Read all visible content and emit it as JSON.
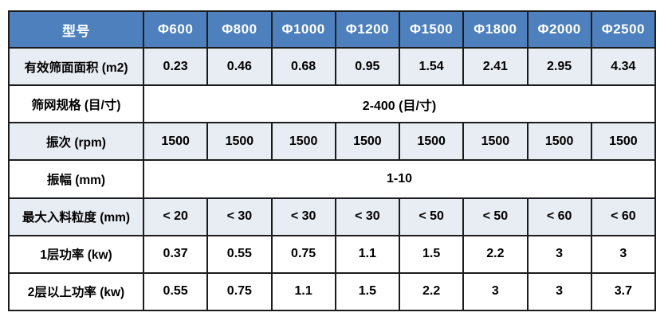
{
  "table": {
    "header": {
      "label": "型号",
      "columns": [
        "Φ600",
        "Φ800",
        "Φ1000",
        "Φ1200",
        "Φ1500",
        "Φ1800",
        "Φ2000",
        "Φ2500"
      ]
    },
    "rows": [
      {
        "label": "有效筛面面积 (m2)",
        "values": [
          "0.23",
          "0.46",
          "0.68",
          "0.95",
          "1.54",
          "2.41",
          "2.95",
          "4.34"
        ]
      },
      {
        "label": "筛网规格 (目/寸)",
        "merged": "2-400 (目/寸)"
      },
      {
        "label": "振次 (rpm)",
        "values": [
          "1500",
          "1500",
          "1500",
          "1500",
          "1500",
          "1500",
          "1500",
          "1500"
        ]
      },
      {
        "label": "振幅 (mm)",
        "merged": "1-10"
      },
      {
        "label": "最大入料粒度 (mm)",
        "values": [
          "< 20",
          "< 30",
          "< 30",
          "< 30",
          "< 50",
          "< 50",
          "< 60",
          "< 60"
        ]
      },
      {
        "label": "1层功率 (kw)",
        "values": [
          "0.37",
          "0.55",
          "0.75",
          "1.1",
          "1.5",
          "2.2",
          "3",
          "3"
        ]
      },
      {
        "label": "2层以上功率 (kw)",
        "values": [
          "0.55",
          "0.75",
          "1.1",
          "1.5",
          "2.2",
          "3",
          "3",
          "3.7"
        ]
      }
    ],
    "colors": {
      "header_bg": "#4d80bd",
      "header_text": "#ffffff",
      "shaded_row_bg": "#e8ecf3",
      "border": "#1c1c1c",
      "body_text": "#000000",
      "page_bg": "#ffffff"
    }
  }
}
